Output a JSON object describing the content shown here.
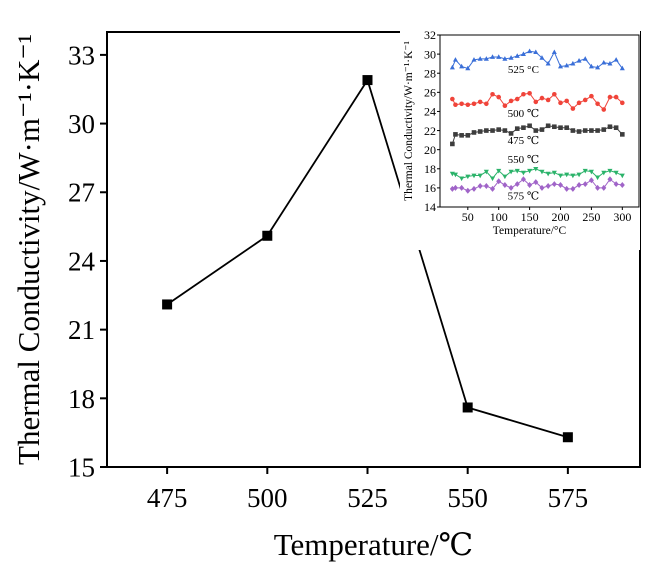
{
  "chart_data": [
    {
      "type": "line",
      "title": "",
      "xlabel": "Temperature/℃",
      "ylabel": "Thermal Conductivity/W·m⁻¹·K⁻¹",
      "x": [
        475,
        500,
        525,
        550,
        575
      ],
      "series": [
        {
          "name": "Thermal Conductivity",
          "values": [
            22.1,
            25.1,
            31.9,
            17.6,
            16.3
          ],
          "color": "#000000",
          "marker": "square"
        }
      ],
      "xticks": [
        "475",
        "500",
        "525",
        "550",
        "575"
      ],
      "yticks": [
        "15",
        "18",
        "21",
        "24",
        "27",
        "30",
        "33"
      ],
      "xlim": [
        460,
        593
      ],
      "ylim": [
        15,
        34
      ],
      "grid": false
    },
    {
      "type": "line",
      "title": "",
      "xlabel": "Temperature/°C",
      "ylabel": "Thermal Conductivity/W·m⁻¹·K⁻¹",
      "x": [
        25,
        30,
        40,
        50,
        60,
        70,
        80,
        90,
        100,
        110,
        120,
        130,
        140,
        150,
        160,
        170,
        180,
        190,
        200,
        210,
        220,
        230,
        240,
        250,
        260,
        270,
        280,
        290,
        300
      ],
      "series": [
        {
          "name": "525 °C",
          "color": "#3a6fd8",
          "marker": "triangle-up",
          "values": [
            28.6,
            29.4,
            28.7,
            28.5,
            29.4,
            29.5,
            29.5,
            29.7,
            29.7,
            29.5,
            29.6,
            29.8,
            30.0,
            30.3,
            30.2,
            29.6,
            29.0,
            30.2,
            28.7,
            28.8,
            29.0,
            29.3,
            29.5,
            28.7,
            28.6,
            29.1,
            29.0,
            29.4,
            28.5
          ]
        },
        {
          "name": "500 ℃",
          "color": "#f0443a",
          "marker": "circle",
          "values": [
            25.3,
            24.7,
            24.8,
            24.7,
            24.8,
            25.0,
            24.8,
            25.8,
            25.5,
            24.6,
            25.1,
            25.3,
            25.8,
            25.9,
            25.0,
            25.4,
            25.2,
            25.8,
            24.9,
            25.1,
            24.3,
            24.9,
            25.2,
            25.6,
            24.8,
            24.2,
            25.5,
            25.5,
            24.9
          ]
        },
        {
          "name": "475 ℃",
          "color": "#3d3d3d",
          "marker": "square",
          "values": [
            20.6,
            21.6,
            21.5,
            21.5,
            21.8,
            21.9,
            22.0,
            22.0,
            22.1,
            22.0,
            21.7,
            22.2,
            22.3,
            22.5,
            22.0,
            22.1,
            22.5,
            22.4,
            22.3,
            22.3,
            22.0,
            21.9,
            22.0,
            22.0,
            22.0,
            22.1,
            22.4,
            22.3,
            21.6
          ]
        },
        {
          "name": "550 ℃",
          "color": "#2bb36a",
          "marker": "triangle-down",
          "values": [
            17.5,
            17.4,
            17.0,
            17.2,
            17.3,
            17.3,
            17.7,
            17.0,
            17.8,
            17.2,
            17.7,
            17.8,
            17.6,
            17.8,
            18.0,
            17.7,
            17.5,
            17.6,
            17.3,
            17.4,
            17.3,
            17.4,
            17.8,
            17.7,
            17.1,
            17.6,
            17.8,
            17.6,
            17.3
          ]
        },
        {
          "name": "575 ℃",
          "color": "#a064c8",
          "marker": "diamond",
          "values": [
            15.9,
            16.0,
            16.0,
            15.7,
            15.9,
            16.2,
            16.2,
            15.9,
            16.7,
            16.3,
            16.0,
            16.4,
            16.9,
            16.3,
            16.6,
            16.0,
            16.2,
            16.4,
            16.3,
            15.9,
            15.9,
            16.3,
            16.4,
            16.8,
            16.0,
            16.0,
            16.9,
            16.4,
            16.3
          ]
        }
      ],
      "annotations": [
        {
          "text": "525 °C",
          "x": 140,
          "y": 28.0
        },
        {
          "text": "500  ℃",
          "x": 140,
          "y": 23.4
        },
        {
          "text": "475  ℃",
          "x": 140,
          "y": 20.6
        },
        {
          "text": "550  ℃",
          "x": 140,
          "y": 18.6
        },
        {
          "text": "575  ℃",
          "x": 140,
          "y": 14.8
        }
      ],
      "xticks": [
        "50",
        "100",
        "150",
        "200",
        "250",
        "300"
      ],
      "yticks": [
        "14",
        "16",
        "18",
        "20",
        "22",
        "24",
        "26",
        "28",
        "30",
        "32"
      ],
      "xlim": [
        5,
        327
      ],
      "ylim": [
        14,
        32
      ],
      "legend": "inset-top-right",
      "grid": false
    }
  ]
}
